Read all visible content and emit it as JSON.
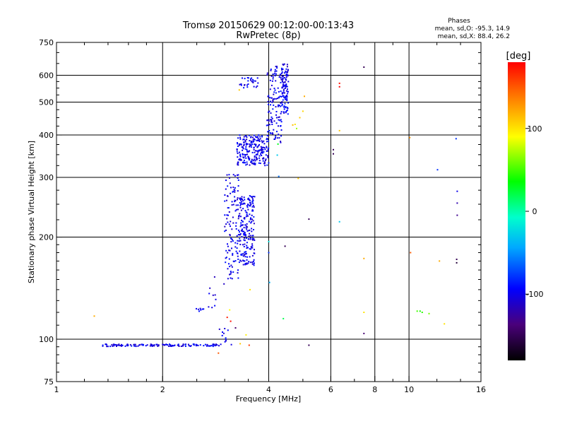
{
  "chart_data": {
    "type": "scatter",
    "title": "Tromsø 20150629 00:12:00-00:13:43",
    "subtitle": "RwPretec (8p)",
    "stats": {
      "heading": "Phases",
      "line1": "mean, sd,O: -95.3, 14.9",
      "line2": "mean, sd,X: 88.4, 26.2"
    },
    "xlabel": "Frequency [MHz]",
    "ylabel": "Stationary phase Virtual Height [km]",
    "x_scale": "log",
    "y_scale": "log",
    "xlim": [
      1,
      16
    ],
    "ylim": [
      75,
      750
    ],
    "x_ticks": [
      1,
      2,
      4,
      6,
      8,
      10,
      16
    ],
    "x_tick_labels": [
      "1",
      "2",
      "4",
      "6",
      "8",
      "10",
      "16"
    ],
    "x_gridlines": [
      2,
      4,
      6,
      8,
      10
    ],
    "y_ticks": [
      75,
      100,
      200,
      300,
      400,
      500,
      600,
      750
    ],
    "y_tick_labels": [
      "75",
      "100",
      "200",
      "300",
      "400",
      "500",
      "600",
      "750"
    ],
    "y_gridlines": [
      100,
      200,
      300,
      400,
      500,
      600
    ],
    "grid": true,
    "colorbar": {
      "label": "[deg]",
      "range": [
        -180,
        180
      ],
      "ticks": [
        100,
        0,
        -100
      ],
      "tick_labels": [
        "100",
        "0",
        "-100"
      ]
    },
    "series": [
      {
        "description": "O-mode trace (phase ~ -100 deg)",
        "phase_deg": -100,
        "segments": [
          {
            "x_range": [
              1.35,
              2.95
            ],
            "y": 96,
            "count": 130,
            "jitter": 0.8
          },
          {
            "x_range": [
              2.95,
              3.15
            ],
            "y_range": [
              96,
              108
            ],
            "count": 10
          },
          {
            "x_range": [
              2.45,
              2.62
            ],
            "y": 122,
            "count": 7
          },
          {
            "x_range": [
              2.68,
              3.0
            ],
            "y_range": [
              123,
              160
            ],
            "count": 10
          },
          {
            "x_range": [
              3.0,
              3.3
            ],
            "y_range": [
              150,
              315
            ],
            "count": 120
          },
          {
            "x_range": [
              3.3,
              3.65
            ],
            "y_range": [
              165,
              265
            ],
            "count": 200
          },
          {
            "x_range": [
              3.25,
              4.0
            ],
            "y_range": [
              325,
              400
            ],
            "count": 230
          },
          {
            "x_range": [
              3.95,
              4.35
            ],
            "y_range": [
              380,
              640
            ],
            "count": 120
          },
          {
            "x_range": [
              4.35,
              4.55
            ],
            "y_range": [
              460,
              650
            ],
            "count": 110
          },
          {
            "x_range": [
              3.3,
              3.75
            ],
            "y_range": [
              550,
              595
            ],
            "count": 28
          }
        ]
      }
    ],
    "scattered_points": [
      {
        "x": 1.28,
        "y": 117,
        "phase": 120
      },
      {
        "x": 2.9,
        "y": 107,
        "phase": -110
      },
      {
        "x": 3.05,
        "y": 116,
        "phase": 170
      },
      {
        "x": 3.12,
        "y": 113,
        "phase": 175
      },
      {
        "x": 3.1,
        "y": 122,
        "phase": 90
      },
      {
        "x": 2.88,
        "y": 91,
        "phase": 150
      },
      {
        "x": 3.22,
        "y": 108,
        "phase": -140
      },
      {
        "x": 3.32,
        "y": 97,
        "phase": 110
      },
      {
        "x": 3.45,
        "y": 103,
        "phase": 95
      },
      {
        "x": 3.52,
        "y": 96,
        "phase": 160
      },
      {
        "x": 3.54,
        "y": 140,
        "phase": 100
      },
      {
        "x": 3.3,
        "y": 543,
        "phase": 110
      },
      {
        "x": 4.25,
        "y": 376,
        "phase": 30
      },
      {
        "x": 4.23,
        "y": 349,
        "phase": -30
      },
      {
        "x": 4.27,
        "y": 302,
        "phase": -60
      },
      {
        "x": 4.0,
        "y": 194,
        "phase": -20
      },
      {
        "x": 4.0,
        "y": 180,
        "phase": -80
      },
      {
        "x": 4.02,
        "y": 147,
        "phase": -40
      },
      {
        "x": 4.4,
        "y": 115,
        "phase": 20
      },
      {
        "x": 4.45,
        "y": 188,
        "phase": -150
      },
      {
        "x": 4.85,
        "y": 298,
        "phase": 110
      },
      {
        "x": 4.75,
        "y": 430,
        "phase": 100
      },
      {
        "x": 4.8,
        "y": 418,
        "phase": 70
      },
      {
        "x": 4.9,
        "y": 450,
        "phase": 110
      },
      {
        "x": 5.0,
        "y": 470,
        "phase": 105
      },
      {
        "x": 5.05,
        "y": 520,
        "phase": 120
      },
      {
        "x": 4.68,
        "y": 428,
        "phase": 115
      },
      {
        "x": 5.2,
        "y": 226,
        "phase": -150
      },
      {
        "x": 5.2,
        "y": 96,
        "phase": -150
      },
      {
        "x": 6.1,
        "y": 362,
        "phase": -150
      },
      {
        "x": 6.1,
        "y": 352,
        "phase": -150
      },
      {
        "x": 6.35,
        "y": 568,
        "phase": 175
      },
      {
        "x": 6.35,
        "y": 555,
        "phase": 180
      },
      {
        "x": 6.35,
        "y": 412,
        "phase": 110
      },
      {
        "x": 6.35,
        "y": 222,
        "phase": -30
      },
      {
        "x": 7.45,
        "y": 634,
        "phase": -150
      },
      {
        "x": 7.45,
        "y": 173,
        "phase": 120
      },
      {
        "x": 7.45,
        "y": 120,
        "phase": 100
      },
      {
        "x": 7.45,
        "y": 104,
        "phase": -140
      },
      {
        "x": 10.05,
        "y": 393,
        "phase": 130
      },
      {
        "x": 10.1,
        "y": 180,
        "phase": 150
      },
      {
        "x": 10.55,
        "y": 121,
        "phase": 50
      },
      {
        "x": 10.75,
        "y": 121,
        "phase": 40
      },
      {
        "x": 10.9,
        "y": 120,
        "phase": 45
      },
      {
        "x": 11.4,
        "y": 119,
        "phase": 60
      },
      {
        "x": 12.05,
        "y": 316,
        "phase": -80
      },
      {
        "x": 12.2,
        "y": 170,
        "phase": 120
      },
      {
        "x": 12.6,
        "y": 111,
        "phase": 100
      },
      {
        "x": 13.6,
        "y": 390,
        "phase": -80
      },
      {
        "x": 13.7,
        "y": 273,
        "phase": -100
      },
      {
        "x": 13.7,
        "y": 252,
        "phase": -120
      },
      {
        "x": 13.7,
        "y": 232,
        "phase": -130
      },
      {
        "x": 13.65,
        "y": 172,
        "phase": -150
      },
      {
        "x": 13.65,
        "y": 168,
        "phase": -160
      }
    ]
  }
}
